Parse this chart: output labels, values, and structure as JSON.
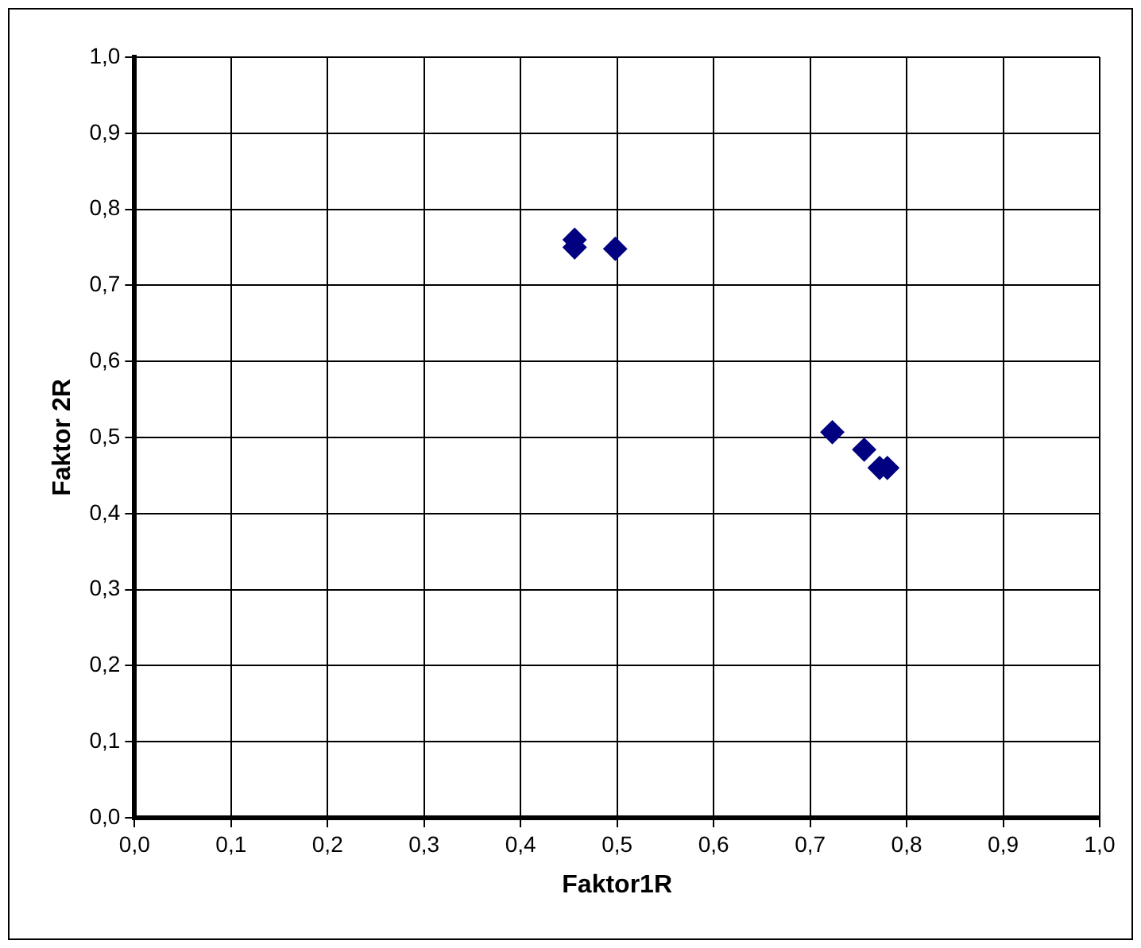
{
  "chart_data": {
    "type": "scatter",
    "xlabel": "Faktor1R",
    "ylabel": "Faktor 2R",
    "x": [
      0.456,
      0.456,
      0.498,
      0.723,
      0.756,
      0.772,
      0.78
    ],
    "series": [
      {
        "color": "#000080",
        "values": [
          0.76,
          0.75,
          0.748,
          0.507,
          0.484,
          0.46,
          0.46
        ]
      }
    ],
    "xlim": [
      0,
      1
    ],
    "ylim": [
      0,
      1
    ],
    "xticks": [
      {
        "value": 0,
        "label": "0,0"
      },
      {
        "value": 0.1,
        "label": "0,1"
      },
      {
        "value": 0.2,
        "label": "0,2"
      },
      {
        "value": 0.3,
        "label": "0,3"
      },
      {
        "value": 0.4,
        "label": "0,4"
      },
      {
        "value": 0.5,
        "label": "0,5"
      },
      {
        "value": 0.6,
        "label": "0,6"
      },
      {
        "value": 0.7,
        "label": "0,7"
      },
      {
        "value": 0.8,
        "label": "0,8"
      },
      {
        "value": 0.9,
        "label": "0,9"
      },
      {
        "value": 1,
        "label": "1,0"
      }
    ],
    "yticks": [
      {
        "value": 0,
        "label": "0,0"
      },
      {
        "value": 0.1,
        "label": "0,1"
      },
      {
        "value": 0.2,
        "label": "0,2"
      },
      {
        "value": 0.3,
        "label": "0,3"
      },
      {
        "value": 0.4,
        "label": "0,4"
      },
      {
        "value": 0.5,
        "label": "0,5"
      },
      {
        "value": 0.6,
        "label": "0,6"
      },
      {
        "value": 0.7,
        "label": "0,7"
      },
      {
        "value": 0.8,
        "label": "0,8"
      },
      {
        "value": 0.9,
        "label": "0,9"
      },
      {
        "value": 1,
        "label": "1,0"
      }
    ],
    "grid": true,
    "legend": false,
    "marker": "diamond"
  }
}
